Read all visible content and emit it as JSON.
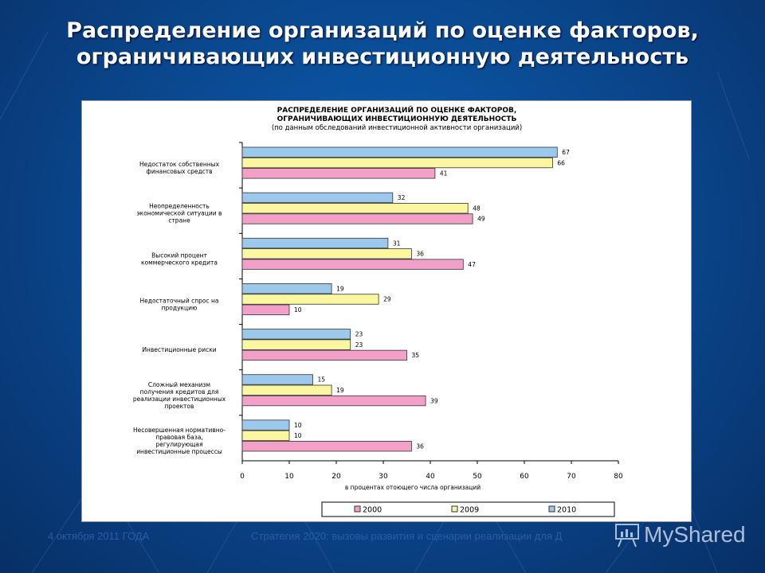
{
  "slide": {
    "title": "Распределение организаций по оценке факторов, ограничивающих инвестиционную деятельность",
    "footer_date": "4 октября 2011 ГОДА",
    "footer_text": "Стратегия 2020: вызовы развития и сценарии реализации для Д",
    "watermark": "MyShared"
  },
  "chart_data": {
    "type": "bar",
    "orientation": "horizontal",
    "title_line1": "РАСПРЕДЕЛЕНИЕ ОРГАНИЗАЦИЙ ПО ОЦЕНКЕ ФАКТОРОВ,",
    "title_line2": "ОГРАНИЧИВАЮЩИХ ИНВЕСТИЦИОННУЮ ДЕЯТЕЛЬНОСТЬ",
    "subtitle": "(по данным обследований инвестиционной активности организаций)",
    "xlabel": "в процентах отоющего числа организаций",
    "xlim": [
      0,
      80
    ],
    "xticks": [
      0,
      10,
      20,
      30,
      40,
      50,
      60,
      70,
      80
    ],
    "legend_position": "bottom",
    "categories": [
      [
        "Недостаток собственных",
        "финансовых средств"
      ],
      [
        "Неопределенность",
        "экономической ситуации в",
        "стране"
      ],
      [
        "Высокий процент",
        "коммерческого кредита"
      ],
      [
        "Недостаточный спрос на",
        "продукцию"
      ],
      [
        "Инвестиционные риски"
      ],
      [
        "Сложный механизм",
        "получения кредитов для",
        "реализации инвестиционных",
        "проектов"
      ],
      [
        "Несовершенная нормативно-",
        "правовая база,",
        "регулирующая",
        "инвестиционные процессы"
      ]
    ],
    "series": [
      {
        "name": "2010",
        "color": "#9cc8ec",
        "values": [
          67,
          32,
          31,
          19,
          23,
          15,
          10
        ]
      },
      {
        "name": "2009",
        "color": "#fbf7a0",
        "values": [
          66,
          48,
          36,
          29,
          23,
          19,
          10
        ]
      },
      {
        "name": "2000",
        "color": "#f2a0c8",
        "values": [
          41,
          49,
          47,
          10,
          35,
          39,
          36
        ]
      }
    ],
    "legend_order": [
      "2000",
      "2009",
      "2010"
    ]
  }
}
